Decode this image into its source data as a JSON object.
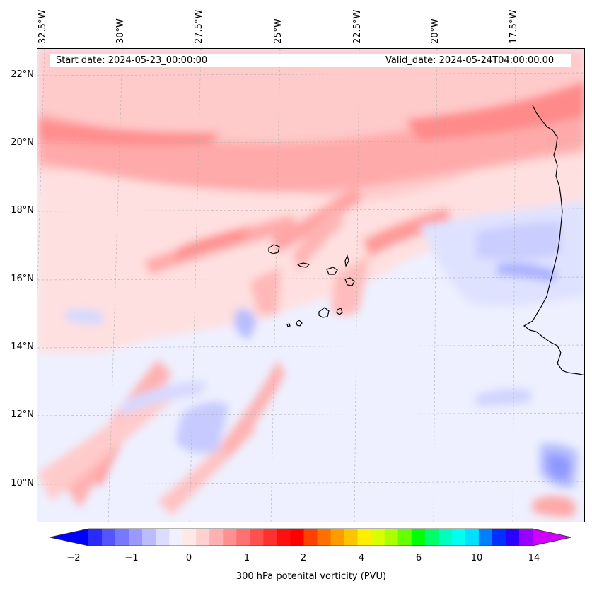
{
  "header": {
    "start_date": "Start date: 2024-05-23_00:00:00",
    "valid_date": "Valid_date: 2024-05-24T04:00:00.00"
  },
  "axes": {
    "lon_labels": [
      "32.5°W",
      "30°W",
      "27.5°W",
      "25°W",
      "22.5°W",
      "20°W",
      "17.5°W"
    ],
    "lat_labels": [
      "22°N",
      "20°N",
      "18°N",
      "16°N",
      "14°N",
      "12°N",
      "10°N"
    ]
  },
  "colorbar": {
    "ticks": [
      "−2",
      "−1",
      "0",
      "1",
      "2",
      "4",
      "6",
      "10",
      "14"
    ],
    "label": "300 hPa potenital vorticity (PVU)",
    "colors": [
      "#0000ff",
      "#2a2aff",
      "#5555ff",
      "#7777ff",
      "#9999ff",
      "#bbbbff",
      "#dcdcff",
      "#f0f0ff",
      "#ffe8e8",
      "#ffd0d0",
      "#ffb0b0",
      "#ff9090",
      "#ff7070",
      "#ff5050",
      "#ff3030",
      "#ff1010",
      "#ff0000",
      "#ff4000",
      "#ff7000",
      "#ff9a00",
      "#ffc400",
      "#ffee00",
      "#d8ff00",
      "#aaff00",
      "#66ff00",
      "#00ff00",
      "#00ff66",
      "#00ffbb",
      "#00ffee",
      "#00e0ff",
      "#0080ff",
      "#0030ff",
      "#2a00ff",
      "#9a00ff",
      "#d000ff"
    ]
  },
  "map": {
    "features": [
      "coastline-west-africa",
      "cape-verde-islands"
    ],
    "palette": {
      "neutral": "#eef0ff",
      "light_pink": "#ffe4e4",
      "pink": "#ffc6c6",
      "mid_red": "#ff9e9e",
      "red": "#ff8080",
      "light_blue": "#cfd3ff",
      "blue": "#9ea6ff"
    }
  }
}
